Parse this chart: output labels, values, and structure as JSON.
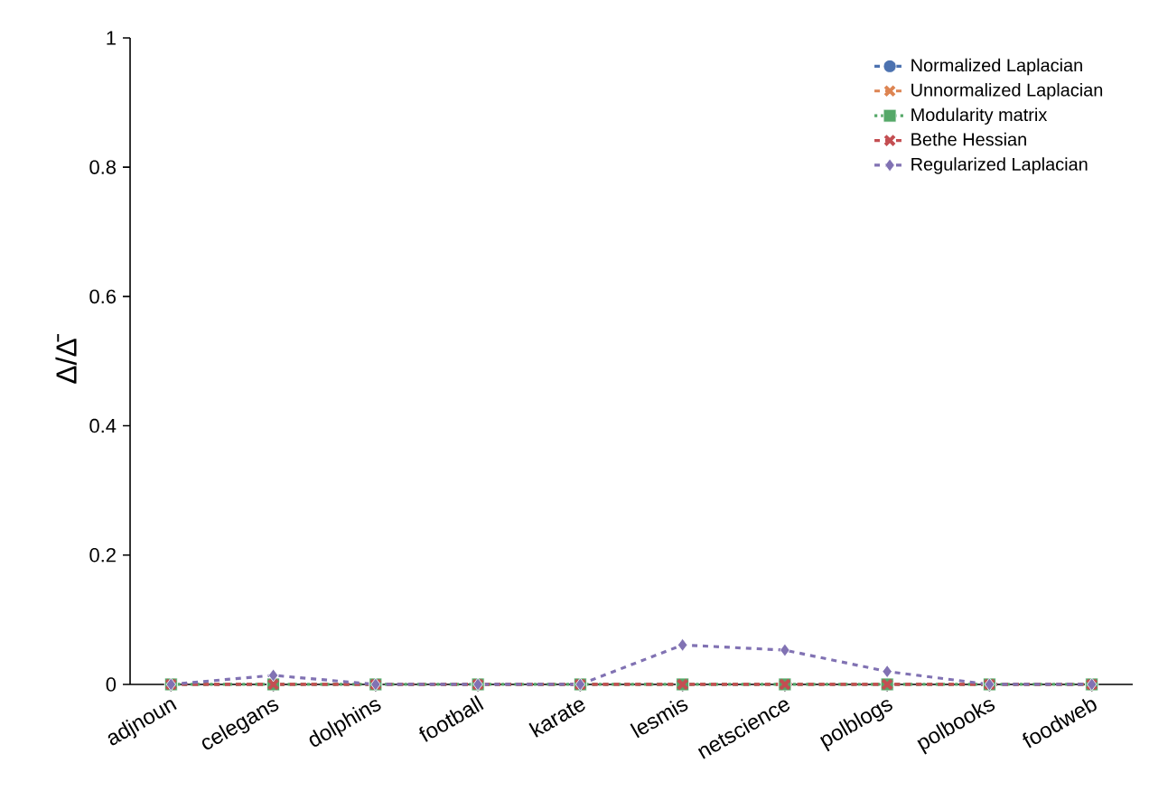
{
  "chart_data": {
    "type": "line",
    "ylabel": "Δ/Δ̄",
    "categories": [
      "adjnoun",
      "celegans",
      "dolphins",
      "football",
      "karate",
      "lesmis",
      "netscience",
      "polblogs",
      "polbooks",
      "foodweb"
    ],
    "series": [
      {
        "name": "Normalized Laplacian",
        "color": "#4c72b0",
        "marker": "circle",
        "line_style": "dashed",
        "values": [
          0,
          0,
          0,
          0,
          0,
          0,
          0,
          0,
          0,
          0
        ]
      },
      {
        "name": "Unnormalized Laplacian",
        "color": "#dd8452",
        "marker": "cross",
        "line_style": "dashed",
        "values": [
          0,
          0,
          0,
          0,
          0,
          0,
          0,
          0,
          0,
          0
        ]
      },
      {
        "name": "Modularity matrix",
        "color": "#55a868",
        "marker": "square",
        "line_style": "dotted",
        "values": [
          0,
          0,
          0,
          0,
          0,
          0,
          0,
          0,
          0,
          0
        ]
      },
      {
        "name": "Bethe Hessian",
        "color": "#c44e52",
        "marker": "cross",
        "line_style": "dashed",
        "values": [
          0,
          0,
          0,
          0,
          0,
          0,
          0,
          0,
          0,
          0
        ]
      },
      {
        "name": "Regularized Laplacian",
        "color": "#8172b3",
        "marker": "diamond",
        "line_style": "dashed",
        "values": [
          0,
          0.014,
          0,
          0,
          0,
          0.061,
          0.053,
          0.02,
          0,
          0
        ]
      }
    ],
    "ylim": [
      0,
      1
    ],
    "yticks": [
      0,
      0.2,
      0.4,
      0.6,
      0.8,
      1
    ],
    "grid": false,
    "legend": "top right"
  }
}
